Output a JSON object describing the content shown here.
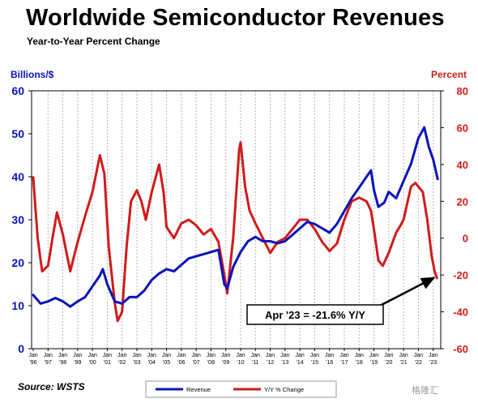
{
  "page": {
    "title": "Worldwide Semiconductor Revenues",
    "subtitle": "Year-to-Year Percent Change",
    "left_unit": "Billions/$",
    "right_unit": "Percent",
    "source": "Source: WSTS",
    "watermark": "格隆汇"
  },
  "colors": {
    "revenue": "#0b14b8",
    "yoy": "#d11a1a",
    "left_axis": "#0b14b8",
    "right_axis": "#d11a1a"
  },
  "chart_data": {
    "type": "line",
    "title": "Worldwide Semiconductor Revenues",
    "subtitle": "Year-to-Year Percent Change",
    "ylabel_left": "Billions/$",
    "ylabel_right": "Percent",
    "ylim_left": [
      0,
      60
    ],
    "ylim_right": [
      -60,
      80
    ],
    "yticks_left": [
      "0",
      "10",
      "20",
      "30",
      "40",
      "50",
      "60"
    ],
    "yticks_right": [
      "-60",
      "-40",
      "-20",
      "0",
      "20",
      "40",
      "60",
      "80"
    ],
    "x_tick_top": [
      "Jan",
      "Jan",
      "Jan",
      "Jan",
      "Jan",
      "Jan",
      "Jan",
      "Jan",
      "Jan",
      "Jan",
      "Jan",
      "Jan",
      "Jan",
      "Jan",
      "Jan",
      "Jan",
      "Jan",
      "Jan",
      "Jan",
      "Jan",
      "Jan",
      "Jan",
      "Jan",
      "Jan",
      "Jan",
      "Jan",
      "Jan",
      "Jan"
    ],
    "x_tick_bottom": [
      "'96",
      "'97",
      "'98",
      "'99",
      "'00",
      "'01",
      "'02",
      "'03",
      "'04",
      "'05",
      "'06",
      "'07",
      "'08",
      "'09",
      "'10",
      "'11",
      "'12",
      "'13",
      "'14",
      "'15",
      "'16",
      "'17",
      "'18",
      "'19",
      "'20",
      "'21",
      "'22",
      "'23"
    ],
    "grid": "vertical",
    "legend": "bottom-center",
    "series": [
      {
        "name": "Revenue",
        "axis": "left",
        "points": [
          [
            1996.0,
            12.5
          ],
          [
            1996.5,
            10.5
          ],
          [
            1997.0,
            11.0
          ],
          [
            1997.5,
            11.8
          ],
          [
            1998.0,
            11.0
          ],
          [
            1998.5,
            9.8
          ],
          [
            1999.0,
            11.0
          ],
          [
            1999.5,
            12.0
          ],
          [
            2000.0,
            14.5
          ],
          [
            2000.5,
            17.0
          ],
          [
            2000.7,
            18.5
          ],
          [
            2001.0,
            15.0
          ],
          [
            2001.5,
            11.0
          ],
          [
            2002.0,
            10.5
          ],
          [
            2002.5,
            12.0
          ],
          [
            2003.0,
            12.0
          ],
          [
            2003.5,
            13.5
          ],
          [
            2004.0,
            16.0
          ],
          [
            2004.5,
            17.5
          ],
          [
            2005.0,
            18.5
          ],
          [
            2005.5,
            18.0
          ],
          [
            2006.0,
            19.5
          ],
          [
            2006.5,
            21.0
          ],
          [
            2007.0,
            21.5
          ],
          [
            2007.5,
            22.0
          ],
          [
            2008.0,
            22.5
          ],
          [
            2008.5,
            23.0
          ],
          [
            2008.9,
            15.0
          ],
          [
            2009.1,
            14.0
          ],
          [
            2009.5,
            19.0
          ],
          [
            2010.0,
            22.5
          ],
          [
            2010.5,
            25.0
          ],
          [
            2011.0,
            26.0
          ],
          [
            2011.5,
            25.0
          ],
          [
            2012.0,
            25.0
          ],
          [
            2012.5,
            24.5
          ],
          [
            2013.0,
            25.0
          ],
          [
            2013.5,
            26.5
          ],
          [
            2014.0,
            28.0
          ],
          [
            2014.5,
            29.5
          ],
          [
            2015.0,
            29.0
          ],
          [
            2015.5,
            28.0
          ],
          [
            2016.0,
            27.0
          ],
          [
            2016.5,
            29.0
          ],
          [
            2017.0,
            32.0
          ],
          [
            2017.5,
            35.0
          ],
          [
            2018.0,
            37.5
          ],
          [
            2018.5,
            40.0
          ],
          [
            2018.8,
            41.5
          ],
          [
            2019.0,
            37.0
          ],
          [
            2019.3,
            33.0
          ],
          [
            2019.7,
            34.0
          ],
          [
            2020.0,
            36.5
          ],
          [
            2020.5,
            35.0
          ],
          [
            2021.0,
            39.0
          ],
          [
            2021.5,
            43.0
          ],
          [
            2022.0,
            49.0
          ],
          [
            2022.4,
            51.5
          ],
          [
            2022.7,
            47.0
          ],
          [
            2023.0,
            44.0
          ],
          [
            2023.3,
            39.5
          ]
        ]
      },
      {
        "name": "Y/Y % Change",
        "axis": "right",
        "points": [
          [
            1996.0,
            33
          ],
          [
            1996.3,
            0
          ],
          [
            1996.6,
            -18
          ],
          [
            1997.0,
            -15
          ],
          [
            1997.3,
            0
          ],
          [
            1997.6,
            14
          ],
          [
            1998.0,
            2
          ],
          [
            1998.5,
            -18
          ],
          [
            1999.0,
            -2
          ],
          [
            1999.5,
            12
          ],
          [
            2000.0,
            25
          ],
          [
            2000.5,
            45
          ],
          [
            2000.8,
            35
          ],
          [
            2001.1,
            -5
          ],
          [
            2001.5,
            -35
          ],
          [
            2001.7,
            -45
          ],
          [
            2002.0,
            -40
          ],
          [
            2002.3,
            -5
          ],
          [
            2002.6,
            20
          ],
          [
            2003.0,
            26
          ],
          [
            2003.3,
            20
          ],
          [
            2003.6,
            10
          ],
          [
            2004.0,
            25
          ],
          [
            2004.5,
            40
          ],
          [
            2004.8,
            25
          ],
          [
            2005.0,
            6
          ],
          [
            2005.5,
            0
          ],
          [
            2006.0,
            8
          ],
          [
            2006.5,
            10
          ],
          [
            2007.0,
            7
          ],
          [
            2007.5,
            2
          ],
          [
            2008.0,
            5
          ],
          [
            2008.5,
            -2
          ],
          [
            2008.9,
            -20
          ],
          [
            2009.1,
            -30
          ],
          [
            2009.5,
            0
          ],
          [
            2009.9,
            48
          ],
          [
            2010.0,
            52
          ],
          [
            2010.3,
            28
          ],
          [
            2010.6,
            15
          ],
          [
            2011.0,
            8
          ],
          [
            2011.5,
            0
          ],
          [
            2012.0,
            -8
          ],
          [
            2012.5,
            -2
          ],
          [
            2013.0,
            0
          ],
          [
            2013.5,
            5
          ],
          [
            2014.0,
            10
          ],
          [
            2014.5,
            10
          ],
          [
            2015.0,
            5
          ],
          [
            2015.5,
            -2
          ],
          [
            2016.0,
            -7
          ],
          [
            2016.5,
            -3
          ],
          [
            2017.0,
            10
          ],
          [
            2017.5,
            20
          ],
          [
            2018.0,
            22
          ],
          [
            2018.5,
            20
          ],
          [
            2018.8,
            15
          ],
          [
            2019.0,
            5
          ],
          [
            2019.3,
            -12
          ],
          [
            2019.6,
            -15
          ],
          [
            2020.0,
            -8
          ],
          [
            2020.5,
            3
          ],
          [
            2020.8,
            7
          ],
          [
            2021.0,
            10
          ],
          [
            2021.5,
            28
          ],
          [
            2021.8,
            30
          ],
          [
            2022.0,
            28
          ],
          [
            2022.3,
            25
          ],
          [
            2022.6,
            10
          ],
          [
            2022.9,
            -10
          ],
          [
            2023.1,
            -18
          ],
          [
            2023.25,
            -21.6
          ]
        ]
      }
    ],
    "annotations": [
      {
        "text": "Apr '23 = -21.6% Y/Y",
        "target_x": 2023.25,
        "target_y_right": -21.6
      }
    ]
  },
  "legend": {
    "items": [
      {
        "label": "Revenue",
        "color": "#0b14b8"
      },
      {
        "label": "Y/Y % Change",
        "color": "#d11a1a"
      }
    ]
  }
}
